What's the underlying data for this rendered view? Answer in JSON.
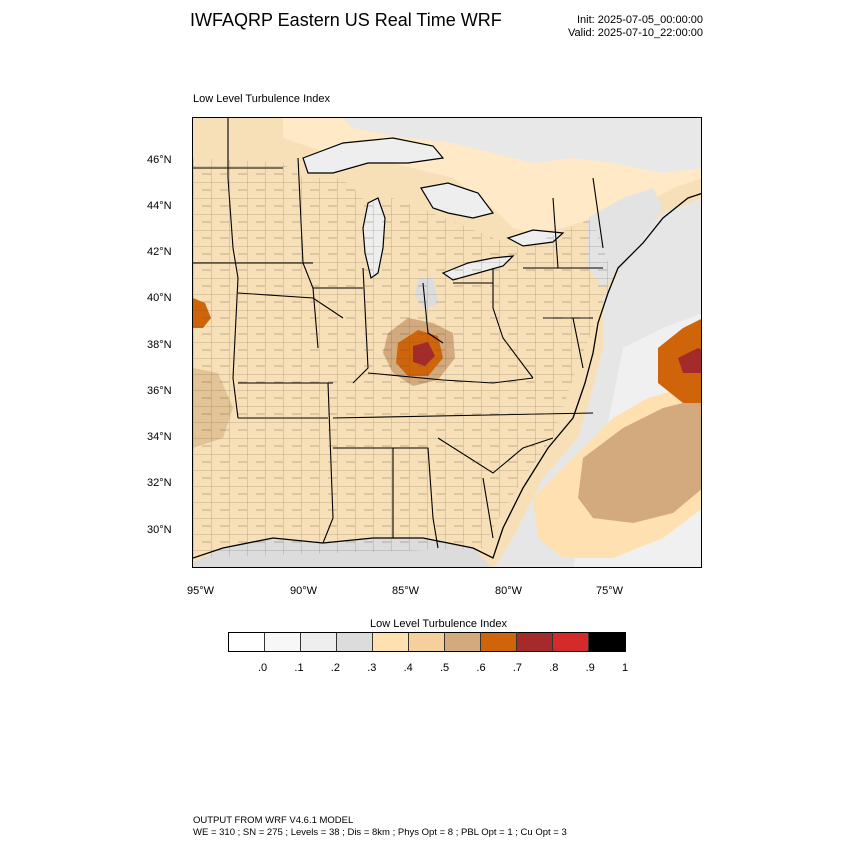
{
  "header": {
    "title": "IWFAQRP Eastern US Real Time WRF",
    "init": "Init: 2025-07-05_00:00:00",
    "valid": "Valid: 2025-07-10_22:00:00"
  },
  "map": {
    "subtitle": "Low Level Turbulence Index",
    "lat_labels": [
      "46°N",
      "44°N",
      "42°N",
      "40°N",
      "38°N",
      "36°N",
      "34°N",
      "32°N",
      "30°N"
    ],
    "lon_labels": [
      "95°W",
      "90°W",
      "85°W",
      "80°W",
      "75°W"
    ]
  },
  "colorbar": {
    "title": "Low Level Turbulence Index",
    "colors": [
      "#ffffff",
      "#f7f7f7",
      "#eeeeee",
      "#dcdcdc",
      "#ffe0b0",
      "#f5d09c",
      "#d2aa7e",
      "#d0640a",
      "#a52a2a",
      "#d42a2a",
      "#000000"
    ],
    "labels": [
      ".0",
      ".1",
      ".2",
      ".3",
      ".4",
      ".5",
      ".6",
      ".7",
      ".8",
      ".9",
      "1"
    ]
  },
  "footer": {
    "line1": "OUTPUT FROM WRF V4.6.1 MODEL",
    "line2": "WE = 310 ; SN = 275 ; Levels = 38 ; Dis = 8km ; Phys Opt = 8 ; PBL Opt = 1 ; Cu Opt = 3"
  }
}
